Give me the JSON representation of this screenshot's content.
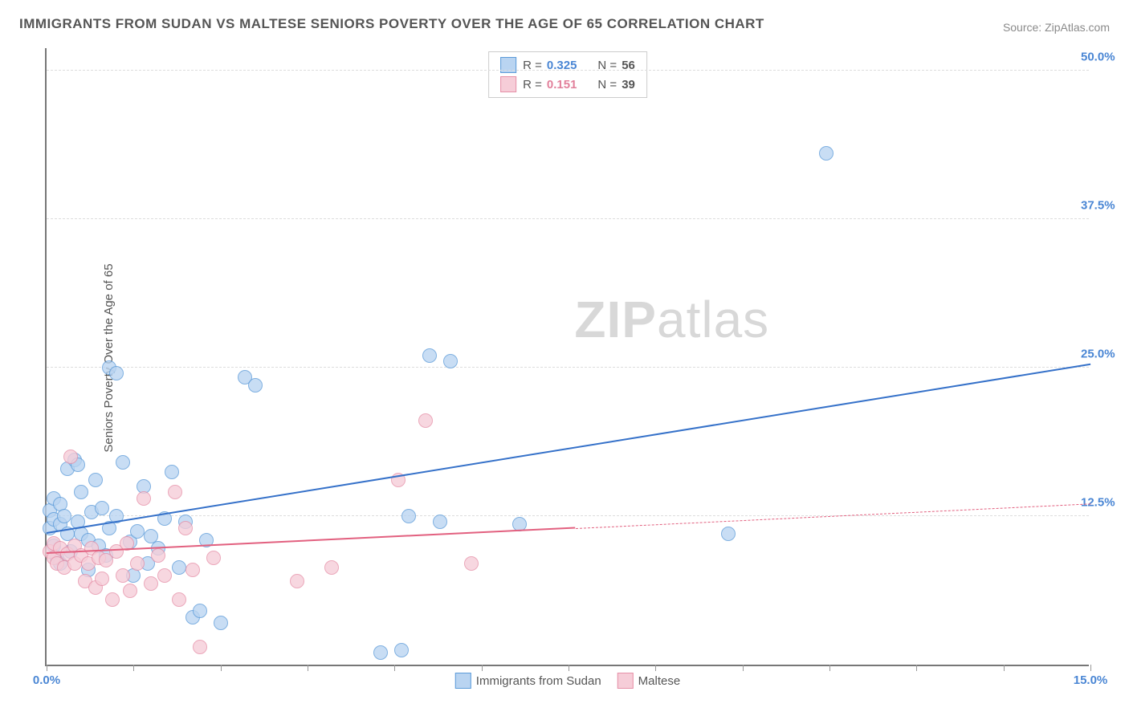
{
  "title": "IMMIGRANTS FROM SUDAN VS MALTESE SENIORS POVERTY OVER THE AGE OF 65 CORRELATION CHART",
  "source": "Source: ZipAtlas.com",
  "y_axis_label": "Seniors Poverty Over the Age of 65",
  "watermark_bold": "ZIP",
  "watermark_light": "atlas",
  "chart": {
    "type": "scatter",
    "xlim": [
      0,
      15
    ],
    "ylim": [
      0,
      52
    ],
    "x_ticks": [
      0,
      1.25,
      2.5,
      3.75,
      5,
      6.25,
      7.5,
      8.75,
      10,
      11.25,
      12.5,
      13.75,
      15
    ],
    "x_tick_labels": {
      "0": "0.0%",
      "15": "15.0%"
    },
    "y_ticks": [
      12.5,
      25.0,
      37.5,
      50.0
    ],
    "y_tick_labels": [
      "12.5%",
      "25.0%",
      "37.5%",
      "50.0%"
    ],
    "background_color": "#ffffff",
    "grid_color": "#dddddd",
    "axis_color": "#777777",
    "series": [
      {
        "name": "Immigrants from Sudan",
        "color_fill": "#b9d4f1",
        "color_stroke": "#5c9bd9",
        "label_color": "#4a86d4",
        "r": "0.325",
        "n": "56",
        "trend": {
          "x1": 0,
          "y1": 11.0,
          "x2": 15,
          "y2": 25.2,
          "solid_until": 15,
          "color": "#3571c9",
          "width": 2.5
        },
        "point_radius": 9,
        "points": [
          [
            0.05,
            11.5
          ],
          [
            0.05,
            13.0
          ],
          [
            0.1,
            10.0
          ],
          [
            0.1,
            12.2
          ],
          [
            0.1,
            14.0
          ],
          [
            0.15,
            9.0
          ],
          [
            0.2,
            8.5
          ],
          [
            0.2,
            11.8
          ],
          [
            0.2,
            13.5
          ],
          [
            0.25,
            12.5
          ],
          [
            0.3,
            16.5
          ],
          [
            0.3,
            11.0
          ],
          [
            0.35,
            9.5
          ],
          [
            0.4,
            17.2
          ],
          [
            0.45,
            16.8
          ],
          [
            0.45,
            12.0
          ],
          [
            0.5,
            11.0
          ],
          [
            0.5,
            14.5
          ],
          [
            0.6,
            8.0
          ],
          [
            0.6,
            10.5
          ],
          [
            0.65,
            12.8
          ],
          [
            0.7,
            15.5
          ],
          [
            0.75,
            10.0
          ],
          [
            0.8,
            13.2
          ],
          [
            0.85,
            9.2
          ],
          [
            0.9,
            25.0
          ],
          [
            0.9,
            11.5
          ],
          [
            1.0,
            24.5
          ],
          [
            1.0,
            12.5
          ],
          [
            1.1,
            17.0
          ],
          [
            1.2,
            10.3
          ],
          [
            1.25,
            7.5
          ],
          [
            1.3,
            11.2
          ],
          [
            1.4,
            15.0
          ],
          [
            1.45,
            8.5
          ],
          [
            1.5,
            10.8
          ],
          [
            1.6,
            9.8
          ],
          [
            1.7,
            12.3
          ],
          [
            1.8,
            16.2
          ],
          [
            1.9,
            8.2
          ],
          [
            2.0,
            12.0
          ],
          [
            2.1,
            4.0
          ],
          [
            2.2,
            4.5
          ],
          [
            2.3,
            10.5
          ],
          [
            2.5,
            3.5
          ],
          [
            2.85,
            24.2
          ],
          [
            3.0,
            23.5
          ],
          [
            4.8,
            1.0
          ],
          [
            5.1,
            1.2
          ],
          [
            5.2,
            12.5
          ],
          [
            5.5,
            26.0
          ],
          [
            5.65,
            12.0
          ],
          [
            5.8,
            25.5
          ],
          [
            6.8,
            11.8
          ],
          [
            9.8,
            11.0
          ],
          [
            11.2,
            43.0
          ]
        ]
      },
      {
        "name": "Maltese",
        "color_fill": "#f6cdd8",
        "color_stroke": "#e690a8",
        "label_color": "#e2809b",
        "r": "0.151",
        "n": "39",
        "trend": {
          "x1": 0,
          "y1": 9.3,
          "x2": 15,
          "y2": 13.5,
          "solid_until": 7.6,
          "color": "#e2607f",
          "width": 2
        },
        "point_radius": 9,
        "points": [
          [
            0.05,
            9.5
          ],
          [
            0.1,
            9.0
          ],
          [
            0.1,
            10.2
          ],
          [
            0.15,
            8.5
          ],
          [
            0.2,
            9.8
          ],
          [
            0.25,
            8.2
          ],
          [
            0.3,
            9.3
          ],
          [
            0.35,
            17.5
          ],
          [
            0.4,
            8.5
          ],
          [
            0.4,
            10.0
          ],
          [
            0.5,
            9.2
          ],
          [
            0.55,
            7.0
          ],
          [
            0.6,
            8.5
          ],
          [
            0.65,
            9.8
          ],
          [
            0.7,
            6.5
          ],
          [
            0.75,
            9.0
          ],
          [
            0.8,
            7.2
          ],
          [
            0.85,
            8.8
          ],
          [
            0.95,
            5.5
          ],
          [
            1.0,
            9.5
          ],
          [
            1.1,
            7.5
          ],
          [
            1.15,
            10.2
          ],
          [
            1.2,
            6.2
          ],
          [
            1.3,
            8.5
          ],
          [
            1.4,
            14.0
          ],
          [
            1.5,
            6.8
          ],
          [
            1.6,
            9.2
          ],
          [
            1.7,
            7.5
          ],
          [
            1.85,
            14.5
          ],
          [
            1.9,
            5.5
          ],
          [
            2.0,
            11.5
          ],
          [
            2.1,
            8.0
          ],
          [
            2.2,
            1.5
          ],
          [
            2.4,
            9.0
          ],
          [
            3.6,
            7.0
          ],
          [
            4.1,
            8.2
          ],
          [
            5.05,
            15.5
          ],
          [
            5.45,
            20.5
          ],
          [
            6.1,
            8.5
          ]
        ]
      }
    ]
  },
  "legend_top": [
    {
      "series": 0,
      "r_label": "R =",
      "n_label": "N ="
    },
    {
      "series": 1,
      "r_label": "R =",
      "n_label": "N ="
    }
  ]
}
